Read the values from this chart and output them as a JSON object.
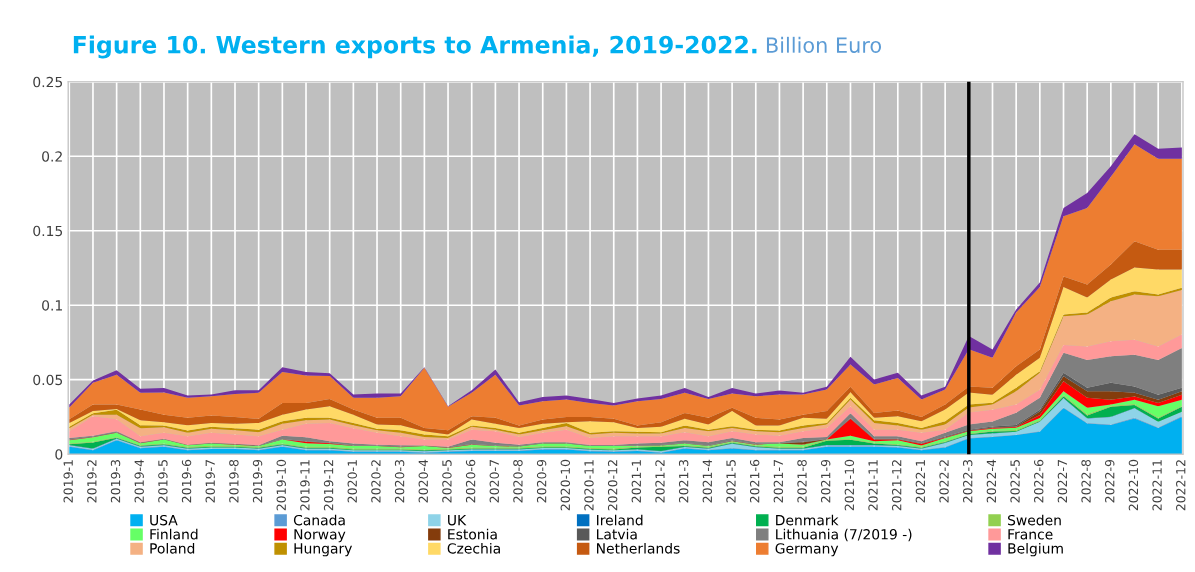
{
  "chart_data": {
    "type": "area",
    "stacked": true,
    "title": "Figure 10. Western exports to Armenia, 2019-2022.",
    "subtitle": "Billion Euro",
    "categories": [
      "2019-1",
      "2019-2",
      "2019-3",
      "2019-4",
      "2019-5",
      "2019-6",
      "2019-7",
      "2019-8",
      "2019-9",
      "2019-10",
      "2019-11",
      "2019-12",
      "2020-1",
      "2020-2",
      "2020-3",
      "2020-4",
      "2020-5",
      "2020-6",
      "2020-7",
      "2020-8",
      "2020-9",
      "2020-10",
      "2020-11",
      "2020-12",
      "2021-1",
      "2021-2",
      "2021-3",
      "2021-4",
      "2021-5",
      "2021-6",
      "2021-7",
      "2021-8",
      "2021-9",
      "2021-10",
      "2021-11",
      "2021-12",
      "2022-1",
      "2022-2",
      "2022-3",
      "2022-4",
      "2022-5",
      "2022-6",
      "2022-7",
      "2022-8",
      "2022-9",
      "2022-10",
      "2022-11",
      "2022-12"
    ],
    "series": [
      {
        "name": "USA",
        "color": "#00b0f0",
        "values": [
          0.005,
          0.0027,
          0.0094,
          0.004,
          0.005,
          0.0027,
          0.0034,
          0.0034,
          0.0027,
          0.005,
          0.0027,
          0.0027,
          0.0016,
          0.0016,
          0.0016,
          0.001,
          0.0016,
          0.0022,
          0.0022,
          0.0022,
          0.0031,
          0.0031,
          0.002,
          0.0016,
          0.0022,
          0.001,
          0.0038,
          0.0027,
          0.0038,
          0.0027,
          0.0027,
          0.0027,
          0.005,
          0.005,
          0.005,
          0.0045,
          0.0027,
          0.0045,
          0.0105,
          0.0116,
          0.0128,
          0.015,
          0.031,
          0.0206,
          0.0195,
          0.024,
          0.0175,
          0.025
        ]
      },
      {
        "name": "Canada",
        "color": "#5b9bd5",
        "values": [
          0.0003,
          0.0003,
          0.0003,
          0.0003,
          0.0003,
          0.0003,
          0.0003,
          0.0003,
          0.0003,
          0.0003,
          0.0003,
          0.0003,
          0.0003,
          0.0003,
          0.0003,
          0.0003,
          0.0003,
          0.0003,
          0.0003,
          0.0003,
          0.0003,
          0.0003,
          0.0003,
          0.0003,
          0.0003,
          0.0003,
          0.0003,
          0.0003,
          0.0003,
          0.0003,
          0.0003,
          0.0003,
          0.0003,
          0.0003,
          0.0003,
          0.0003,
          0.0003,
          0.0003,
          0.0003,
          0.0003,
          0.0003,
          0.0004,
          0.0004,
          0.0004,
          0.0004,
          0.0004,
          0.0004,
          0.0004
        ]
      },
      {
        "name": "UK",
        "color": "#8ed3e8",
        "values": [
          0.0007,
          0.0007,
          0.0007,
          0.0007,
          0.0007,
          0.0007,
          0.0007,
          0.0007,
          0.0007,
          0.0007,
          0.0007,
          0.0007,
          0.0007,
          0.0007,
          0.0007,
          0.0007,
          0.0007,
          0.0007,
          0.0007,
          0.0007,
          0.0007,
          0.0007,
          0.0007,
          0.0007,
          0.0007,
          0.0007,
          0.0007,
          0.0007,
          0.0029,
          0.0017,
          0.0007,
          0.0007,
          0.0007,
          0.0007,
          0.0007,
          0.0007,
          0.0007,
          0.0027,
          0.002,
          0.002,
          0.0019,
          0.0063,
          0.0062,
          0.003,
          0.0051,
          0.0065,
          0.0038,
          0.003
        ]
      },
      {
        "name": "Ireland",
        "color": "#0070c0",
        "values": [
          0.0001,
          0.0001,
          0.0001,
          0.0001,
          0.0001,
          0.0001,
          0.0001,
          0.0001,
          0.0001,
          0.0001,
          0.0001,
          0.0001,
          0.0001,
          0.0001,
          0.0001,
          0.0001,
          0.0001,
          0.0001,
          0.0001,
          0.0001,
          0.0001,
          0.0001,
          0.0001,
          0.0001,
          0.0001,
          0.0001,
          0.0001,
          0.0001,
          0.0001,
          0.0001,
          0.0001,
          0.0001,
          0.0001,
          0.0001,
          0.0001,
          0.0001,
          0.0001,
          0.0001,
          0.0001,
          0.0001,
          0.0001,
          0.0001,
          0.0001,
          0.0001,
          0.0001,
          0.0001,
          0.0001,
          0.0001
        ]
      },
      {
        "name": "Denmark",
        "color": "#00b050",
        "values": [
          0.0005,
          0.004,
          0.0005,
          0.0005,
          0.0005,
          0.0005,
          0.0005,
          0.0005,
          0.0005,
          0.0005,
          0.0005,
          0.0005,
          0.0005,
          0.0005,
          0.0005,
          0.0005,
          0.0005,
          0.0005,
          0.0005,
          0.0005,
          0.0005,
          0.0005,
          0.0005,
          0.0005,
          0.0012,
          0.0028,
          0.0005,
          0.0005,
          0.0005,
          0.0005,
          0.0005,
          0.0005,
          0.0029,
          0.0035,
          0.001,
          0.0005,
          0.0005,
          0.0005,
          0.0004,
          0.0012,
          0.0005,
          0.0005,
          0.0012,
          0.0019,
          0.0067,
          0.002,
          0.0022,
          0.0033
        ]
      },
      {
        "name": "Sweden",
        "color": "#92d050",
        "values": [
          0.0006,
          0.0006,
          0.0006,
          0.0006,
          0.0006,
          0.0006,
          0.0006,
          0.0006,
          0.0006,
          0.0006,
          0.0006,
          0.0006,
          0.0006,
          0.0006,
          0.0006,
          0.0006,
          0.0006,
          0.0006,
          0.0006,
          0.0006,
          0.0006,
          0.0006,
          0.0006,
          0.0006,
          0.0006,
          0.0006,
          0.0006,
          0.0006,
          0.0006,
          0.0006,
          0.0006,
          0.0006,
          0.0006,
          0.0006,
          0.0006,
          0.0006,
          0.0006,
          0.0006,
          0.0006,
          0.0006,
          0.0006,
          0.0006,
          0.0008,
          0.0008,
          0.0006,
          0.0006,
          0.0006,
          0.0006
        ]
      },
      {
        "name": "Finland",
        "color": "#66ff66",
        "values": [
          0.0022,
          0.003,
          0.0028,
          0.0012,
          0.0026,
          0.0011,
          0.0015,
          0.0008,
          0.0005,
          0.0026,
          0.0025,
          0.002,
          0.0016,
          0.0016,
          0.0009,
          0.0022,
          0.0004,
          0.002,
          0.001,
          0.0007,
          0.0018,
          0.0018,
          0.0012,
          0.0016,
          0.0003,
          0.0003,
          0.0011,
          0.0005,
          0.0005,
          0.0005,
          0.0022,
          0.0015,
          0.0002,
          0.0022,
          0.001,
          0.0027,
          0.0009,
          0.0022,
          0.0015,
          0.0013,
          0.0016,
          0.0014,
          0.0025,
          0.0044,
          0.0009,
          0.003,
          0.0075,
          0.0042
        ]
      },
      {
        "name": "Norway",
        "color": "#ff0000",
        "values": [
          0.0001,
          0.0001,
          0.0001,
          0.0001,
          0.0001,
          0.0001,
          0.0001,
          0.0001,
          0.0001,
          0.0001,
          0.001,
          0.0005,
          0.0001,
          0.0001,
          0.0001,
          0.0001,
          0.0001,
          0.0001,
          0.0001,
          0.0001,
          0.0001,
          0.0001,
          0.0001,
          0.0001,
          0.0001,
          0.0001,
          0.0001,
          0.0001,
          0.0001,
          0.0001,
          0.0001,
          0.0001,
          0.0001,
          0.0113,
          0.0011,
          0.0004,
          0.0011,
          0.0003,
          0.0003,
          0.0005,
          0.0005,
          0.002,
          0.0067,
          0.0067,
          0.0033,
          0.0022,
          0.0022,
          0.0033
        ]
      },
      {
        "name": "Estonia",
        "color": "#843c0c",
        "values": [
          0.0001,
          0.0001,
          0.0001,
          0.0001,
          0.0001,
          0.0001,
          0.0001,
          0.0001,
          0.0001,
          0.0001,
          0.0001,
          0.0001,
          0.0001,
          0.0001,
          0.0001,
          0.0001,
          0.0001,
          0.0001,
          0.0001,
          0.0001,
          0.0001,
          0.0001,
          0.0001,
          0.0001,
          0.0001,
          0.0001,
          0.0001,
          0.0001,
          0.0001,
          0.0001,
          0.0001,
          0.0015,
          0.0001,
          0.0002,
          0.0002,
          0.0002,
          0.0002,
          0.0002,
          0.0002,
          0.0003,
          0.0003,
          0.0023,
          0.0034,
          0.0043,
          0.0056,
          0.0025,
          0.0023,
          0.0023
        ]
      },
      {
        "name": "Latvia",
        "color": "#595959",
        "values": [
          0.0002,
          0.0002,
          0.0002,
          0.0002,
          0.0002,
          0.0002,
          0.0002,
          0.0002,
          0.0002,
          0.0002,
          0.0002,
          0.0002,
          0.0002,
          0.0002,
          0.0002,
          0.0002,
          0.0002,
          0.0002,
          0.0002,
          0.0002,
          0.0002,
          0.0002,
          0.0002,
          0.0002,
          0.0002,
          0.0002,
          0.0002,
          0.0002,
          0.0002,
          0.0002,
          0.0002,
          0.0003,
          0.0002,
          0.0003,
          0.0003,
          0.0003,
          0.0003,
          0.0004,
          0.0005,
          0.0006,
          0.001,
          0.0013,
          0.0024,
          0.0024,
          0.0058,
          0.0042,
          0.0033,
          0.0024
        ]
      },
      {
        "name": "Lithuania (7/2019 -)",
        "color": "#7f7f7f",
        "values": [
          0.0011,
          0.0006,
          0.0006,
          0.0002,
          0.0002,
          0,
          0.0001,
          0.0002,
          0.0002,
          0.0022,
          0.0027,
          0.001,
          0.0013,
          0.0006,
          0.0009,
          0,
          0.0003,
          0.003,
          0.0018,
          0.0009,
          0.0005,
          0.0005,
          0.0004,
          0.0004,
          0.0013,
          0.0014,
          0.0019,
          0.0022,
          0.0018,
          0.0012,
          0.0005,
          0.0026,
          0.0014,
          0.0032,
          0.0017,
          0.0017,
          0.0013,
          0.0025,
          0.0035,
          0.0035,
          0.0082,
          0.008,
          0.0134,
          0.0187,
          0.0177,
          0.0213,
          0.0234,
          0.0267
        ]
      },
      {
        "name": "France",
        "color": "#ff9999",
        "values": [
          0.0045,
          0.013,
          0.008,
          0.004,
          0.004,
          0.0056,
          0.0068,
          0.0062,
          0.006,
          0.004,
          0.009,
          0.0123,
          0.0103,
          0.008,
          0.006,
          0.004,
          0.0049,
          0.0066,
          0.0078,
          0.0052,
          0.0064,
          0.0084,
          0.0047,
          0.0058,
          0.0049,
          0.0044,
          0.0053,
          0.004,
          0.0045,
          0.0052,
          0.0044,
          0.0045,
          0.006,
          0.0048,
          0.0044,
          0.0044,
          0.0056,
          0.0021,
          0.008,
          0.0079,
          0.0055,
          0.0054,
          0.0052,
          0.009,
          0.0101,
          0.0101,
          0.009,
          0.009
        ]
      },
      {
        "name": "Poland",
        "color": "#f4b183",
        "values": [
          0.002,
          0.001,
          0.003,
          0.0054,
          0.0037,
          0.0024,
          0.0026,
          0.0029,
          0.0027,
          0.004,
          0.0024,
          0.0022,
          0.002,
          0.0017,
          0.0024,
          0.0018,
          0.0011,
          0.002,
          0.001,
          0.0016,
          0.0017,
          0.0024,
          0.0023,
          0.0024,
          0.0018,
          0.0018,
          0.0029,
          0.0034,
          0.0022,
          0.0022,
          0.0023,
          0.0022,
          0.0023,
          0.0045,
          0.0046,
          0.0028,
          0.0021,
          0.0035,
          0.0035,
          0.0034,
          0.0089,
          0.0114,
          0.0193,
          0.0214,
          0.0269,
          0.0303,
          0.0337,
          0.03
        ]
      },
      {
        "name": "Hungary",
        "color": "#bf9000",
        "values": [
          0.001,
          0.001,
          0.0035,
          0.002,
          0.0011,
          0.0015,
          0.0014,
          0.0013,
          0.0017,
          0.0017,
          0.0016,
          0.0012,
          0.0016,
          0.0009,
          0.0017,
          0.0016,
          0.0011,
          0.0008,
          0.0012,
          0.0011,
          0.0015,
          0.0022,
          0.0011,
          0.001,
          0.0012,
          0.0009,
          0.0016,
          0.001,
          0.0012,
          0.001,
          0.0012,
          0.0016,
          0.0011,
          0.0011,
          0.0018,
          0.0018,
          0.0012,
          0.0022,
          0.002,
          0.0012,
          0.0024,
          0.0009,
          0.0011,
          0.0014,
          0.0024,
          0.0021,
          0.0012,
          0.0014
        ]
      },
      {
        "name": "Czechia",
        "color": "#ffd966",
        "values": [
          0.0026,
          0.0015,
          0.0005,
          0.0034,
          0.0022,
          0.0035,
          0.0026,
          0.003,
          0.0046,
          0.0043,
          0.0056,
          0.0078,
          0.0054,
          0.0029,
          0.0033,
          0.0022,
          0.0012,
          0.004,
          0.0028,
          0.0033,
          0.0028,
          0.0004,
          0.0078,
          0.006,
          0.0026,
          0.0037,
          0.0045,
          0.0035,
          0.0101,
          0.0028,
          0.0033,
          0.0052,
          0.0027,
          0.0038,
          0.0016,
          0.0044,
          0.0045,
          0.0079,
          0.008,
          0.0054,
          0.0087,
          0.0092,
          0.0186,
          0.01,
          0.0122,
          0.016,
          0.0168,
          0.0123
        ]
      },
      {
        "name": "Netherlands",
        "color": "#c55a11",
        "values": [
          0.0024,
          0.0045,
          0.003,
          0.0072,
          0.005,
          0.005,
          0.0049,
          0.0046,
          0.0027,
          0.008,
          0.0044,
          0.0049,
          0.0036,
          0.0045,
          0.005,
          0.0022,
          0.0029,
          0.0022,
          0.004,
          0.0016,
          0.0028,
          0.0036,
          0.0029,
          0.0023,
          0.0016,
          0.003,
          0.004,
          0.0045,
          0.0022,
          0.0052,
          0.004,
          0.002,
          0.0052,
          0.0036,
          0.0033,
          0.004,
          0.0029,
          0.0034,
          0.004,
          0.0047,
          0.0057,
          0.0055,
          0.007,
          0.0088,
          0.01,
          0.0177,
          0.0133,
          0.0133
        ]
      },
      {
        "name": "Germany",
        "color": "#ed7d31",
        "values": [
          0.008,
          0.0145,
          0.02,
          0.0112,
          0.015,
          0.0134,
          0.013,
          0.0154,
          0.0175,
          0.0207,
          0.0184,
          0.0153,
          0.0078,
          0.0134,
          0.0145,
          0.0404,
          0.0157,
          0.0158,
          0.029,
          0.0135,
          0.0124,
          0.0117,
          0.0094,
          0.009,
          0.0164,
          0.0157,
          0.0135,
          0.0127,
          0.0096,
          0.0145,
          0.0168,
          0.0136,
          0.0145,
          0.015,
          0.0191,
          0.0218,
          0.0117,
          0.01,
          0.025,
          0.0202,
          0.0361,
          0.042,
          0.0405,
          0.0514,
          0.059,
          0.065,
          0.061,
          0.061
        ]
      },
      {
        "name": "Belgium",
        "color": "#7030a0",
        "values": [
          0.002,
          0.0015,
          0.003,
          0.0027,
          0.003,
          0.0016,
          0.0011,
          0.0025,
          0.0017,
          0.0033,
          0.0023,
          0.002,
          0.0022,
          0.0029,
          0.0018,
          0.0004,
          0.0004,
          0.0017,
          0.0035,
          0.0022,
          0.0028,
          0.0027,
          0.0027,
          0.0017,
          0.0018,
          0.0023,
          0.0032,
          0.0013,
          0.0037,
          0.0018,
          0.0027,
          0.0012,
          0.0018,
          0.0052,
          0.0033,
          0.0034,
          0.0027,
          0.0018,
          0.009,
          0.0055,
          0.002,
          0.003,
          0.0055,
          0.01,
          0.007,
          0.0067,
          0.0068,
          0.0076
        ]
      }
    ],
    "ylim": [
      0,
      0.25
    ],
    "yticks": [
      0,
      0.05,
      0.1,
      0.15,
      0.2,
      0.25
    ],
    "grid": true,
    "legend": "bottom",
    "ref_lines": [
      {
        "axis": "x",
        "value": "2022-3",
        "label": null,
        "color": "#000000"
      }
    ]
  }
}
